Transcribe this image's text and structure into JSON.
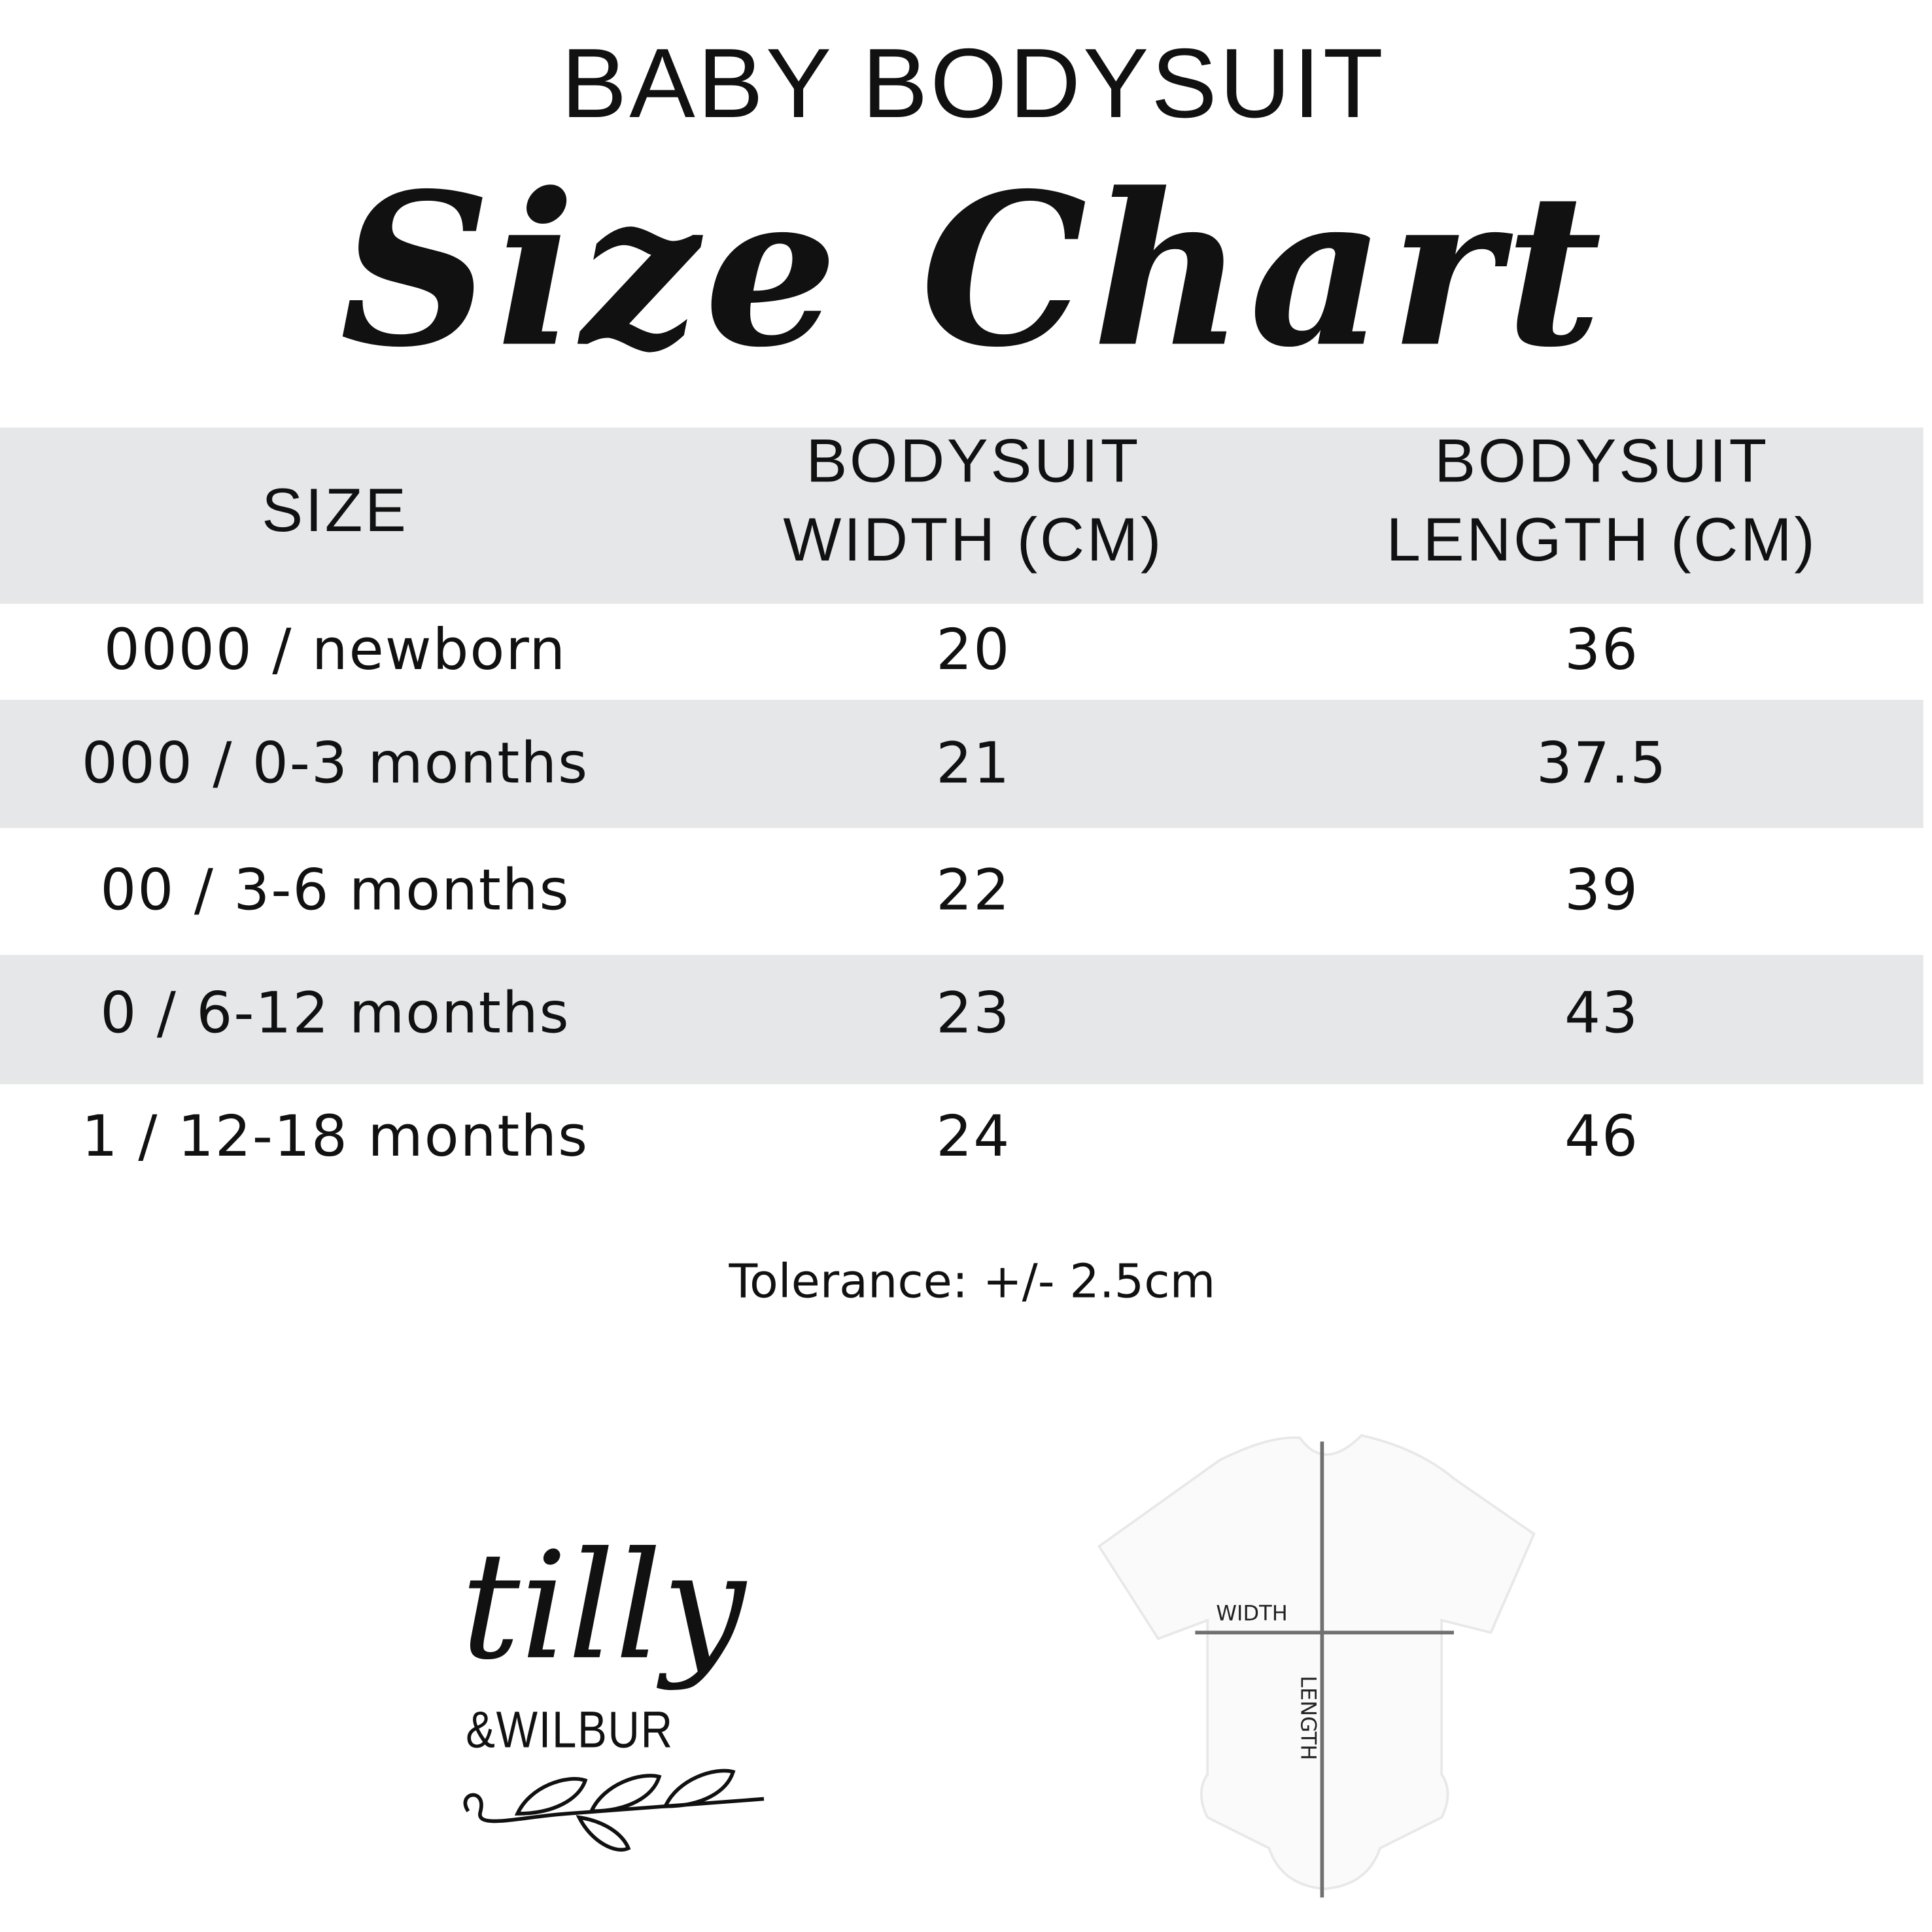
{
  "header": {
    "title": "BABY BODYSUIT",
    "subtitle": "Size Chart"
  },
  "table": {
    "columns": [
      "SIZE",
      [
        "BODYSUIT",
        "WIDTH (CM)"
      ],
      [
        "BODYSUIT",
        "LENGTH (CM)"
      ]
    ],
    "rows": [
      [
        "0000 / newborn",
        "20",
        "36"
      ],
      [
        "000 / 0-3 months",
        "21",
        "37.5"
      ],
      [
        "00 / 3-6 months",
        "22",
        "39"
      ],
      [
        "0 / 6-12 months",
        "23",
        "43"
      ],
      [
        "1 / 12-18 months",
        "24",
        "46"
      ]
    ]
  },
  "note": "Tolerance: +/- 2.5cm",
  "logo": {
    "line1": "tilly",
    "line2": "&WILBUR"
  },
  "diagram": {
    "width_label": "WIDTH",
    "length_label": "LENGTH"
  },
  "colors": {
    "band": "#e6e7e8",
    "text": "#111111",
    "measure_line": "#707070"
  }
}
